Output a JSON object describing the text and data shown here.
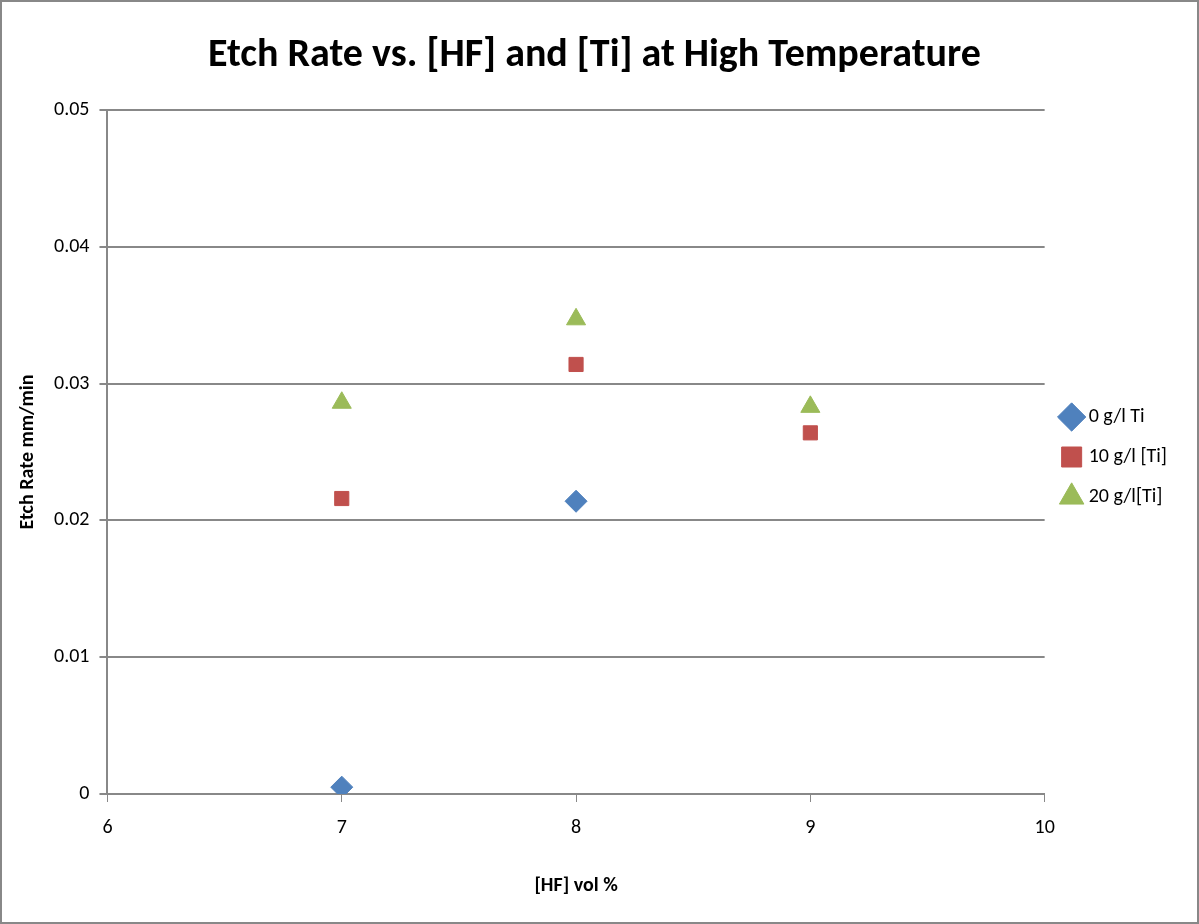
{
  "chart_data": {
    "type": "scatter",
    "title": "Etch Rate vs. [HF] and [Ti] at High Temperature",
    "xlabel": "[HF] vol %",
    "ylabel": "Etch Rate mm/min",
    "series": [
      {
        "name": "0 g/l Ti",
        "color": "#4f81bd",
        "marker": "diamond",
        "x": [
          7,
          8
        ],
        "values": [
          0.0005,
          0.0214
        ]
      },
      {
        "name": "10 g/l [Ti]",
        "color": "#c0504d",
        "marker": "square",
        "x": [
          7,
          8,
          9
        ],
        "values": [
          0.0216,
          0.0314,
          0.0264
        ]
      },
      {
        "name": "20 g/l[Ti]",
        "color": "#9bbb59",
        "marker": "triangle",
        "x": [
          7,
          8,
          9
        ],
        "values": [
          0.0286,
          0.0347,
          0.0283
        ]
      }
    ],
    "xlim": [
      6,
      10
    ],
    "xticks": [
      6,
      7,
      8,
      9,
      10
    ],
    "ylim": [
      0,
      0.05
    ],
    "yticks": [
      0,
      0.01,
      0.02,
      0.03,
      0.04,
      0.05
    ],
    "grid": "y",
    "legend": "right"
  }
}
